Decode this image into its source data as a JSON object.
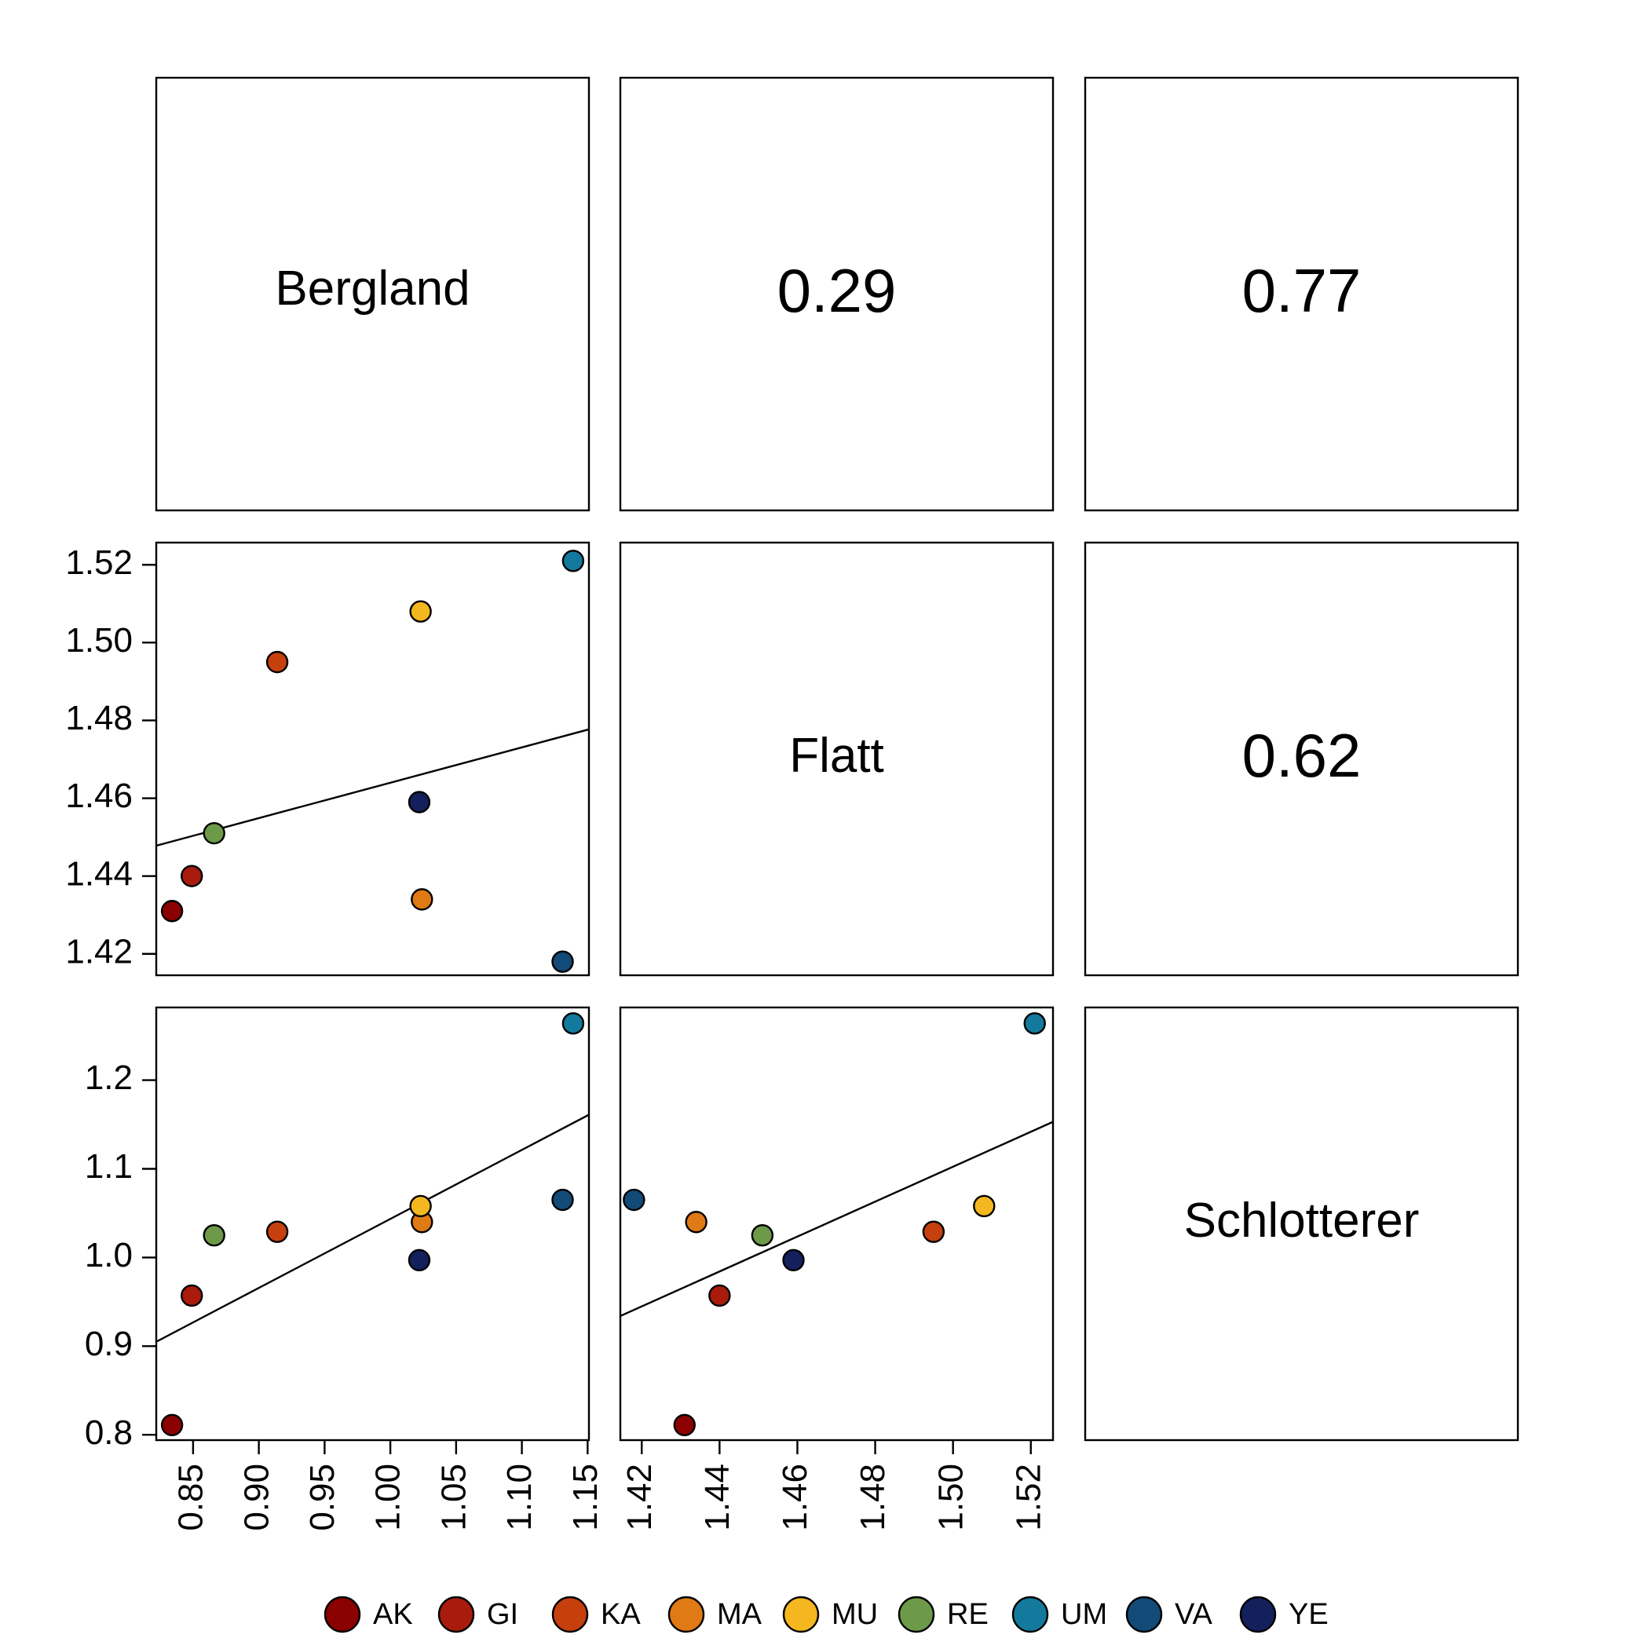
{
  "chart_data": {
    "type": "scatter",
    "variables": [
      "Bergland",
      "Flatt",
      "Schlotterer"
    ],
    "correlations": [
      {
        "row": 0,
        "col": 1,
        "value": "0.29"
      },
      {
        "row": 0,
        "col": 2,
        "value": "0.77"
      },
      {
        "row": 1,
        "col": 2,
        "value": "0.62"
      }
    ],
    "axes": {
      "Bergland": {
        "ticks": [
          "0.85",
          "0.90",
          "0.95",
          "1.00",
          "1.05",
          "1.10",
          "1.15"
        ],
        "range": [
          0.822,
          1.151
        ]
      },
      "Flatt": {
        "ticks": [
          "1.42",
          "1.44",
          "1.46",
          "1.48",
          "1.50",
          "1.52"
        ],
        "range": [
          1.4145,
          1.5257
        ]
      },
      "Schlotterer": {
        "ticks": [
          "0.8",
          "0.9",
          "1.0",
          "1.1",
          "1.2"
        ],
        "range": [
          0.794,
          1.282
        ]
      }
    },
    "populations": [
      {
        "name": "AK",
        "color": "#8B0000",
        "Bergland": 0.834,
        "Flatt": 1.431,
        "Schlotterer": 0.811
      },
      {
        "name": "GI",
        "color": "#A91B0D",
        "Bergland": 0.849,
        "Flatt": 1.44,
        "Schlotterer": 0.957
      },
      {
        "name": "KA",
        "color": "#C6400E",
        "Bergland": 0.914,
        "Flatt": 1.495,
        "Schlotterer": 1.029
      },
      {
        "name": "MA",
        "color": "#DF7A14",
        "Bergland": 1.024,
        "Flatt": 1.434,
        "Schlotterer": 1.04
      },
      {
        "name": "MU",
        "color": "#F4B71F",
        "Bergland": 1.023,
        "Flatt": 1.508,
        "Schlotterer": 1.058
      },
      {
        "name": "RE",
        "color": "#6D9A48",
        "Bergland": 0.866,
        "Flatt": 1.451,
        "Schlotterer": 1.025
      },
      {
        "name": "UM",
        "color": "#137A9E",
        "Bergland": 1.139,
        "Flatt": 1.521,
        "Schlotterer": 1.264
      },
      {
        "name": "VA",
        "color": "#124A78",
        "Bergland": 1.131,
        "Flatt": 1.418,
        "Schlotterer": 1.065
      },
      {
        "name": "YE",
        "color": "#13205C",
        "Bergland": 1.022,
        "Flatt": 1.459,
        "Schlotterer": 0.997
      }
    ],
    "fit_lines": [
      {
        "row": 1,
        "col": 0,
        "x": [
          0.822,
          1.151
        ],
        "y": [
          1.4478,
          1.4777
        ]
      },
      {
        "row": 2,
        "col": 0,
        "x": [
          0.822,
          1.151
        ],
        "y": [
          0.905,
          1.161
        ]
      },
      {
        "row": 2,
        "col": 1,
        "x": [
          1.4145,
          1.5257
        ],
        "y": [
          0.934,
          1.153
        ]
      }
    ],
    "legend": {
      "position": "bottom"
    }
  }
}
